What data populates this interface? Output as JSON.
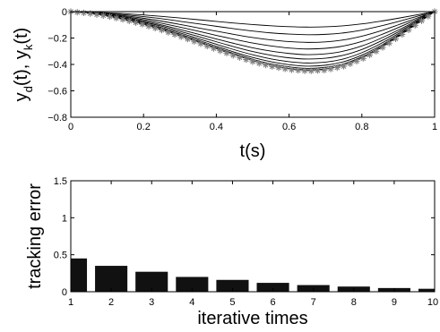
{
  "chart_data": [
    {
      "type": "line",
      "xlabel": "t(s)",
      "ylabel": "y_d(t), y_k(t)",
      "xlim": [
        0,
        1
      ],
      "ylim": [
        -0.8,
        0
      ],
      "xticks": [
        "0",
        "0.2",
        "0.4",
        "0.6",
        "0.8",
        "1"
      ],
      "xtick_values": [
        0,
        0.2,
        0.4,
        0.6,
        0.8,
        1
      ],
      "yticks": [
        "0",
        "−0.2",
        "−0.4",
        "−0.6",
        "−0.8"
      ],
      "ytick_values": [
        0,
        -0.2,
        -0.4,
        -0.6,
        -0.8
      ],
      "grid": false,
      "reference_marker": "*",
      "reference_color": "#808080",
      "line_color": "#000000",
      "x": [
        0,
        0.05,
        0.1,
        0.15,
        0.2,
        0.25,
        0.3,
        0.35,
        0.4,
        0.45,
        0.5,
        0.55,
        0.6,
        0.65,
        0.7,
        0.75,
        0.8,
        0.85,
        0.9,
        0.95,
        1
      ],
      "series": [
        {
          "values": [
            0,
            -0.004,
            -0.009,
            -0.016,
            -0.025,
            -0.036,
            -0.048,
            -0.061,
            -0.074,
            -0.087,
            -0.098,
            -0.107,
            -0.114,
            -0.117,
            -0.115,
            -0.107,
            -0.093,
            -0.073,
            -0.05,
            -0.025,
            0
          ]
        },
        {
          "values": [
            0,
            -0.005,
            -0.013,
            -0.024,
            -0.038,
            -0.054,
            -0.073,
            -0.092,
            -0.111,
            -0.13,
            -0.147,
            -0.161,
            -0.17,
            -0.175,
            -0.172,
            -0.161,
            -0.14,
            -0.11,
            -0.075,
            -0.037,
            0
          ]
        },
        {
          "values": [
            0,
            -0.007,
            -0.018,
            -0.032,
            -0.05,
            -0.072,
            -0.097,
            -0.123,
            -0.148,
            -0.173,
            -0.196,
            -0.214,
            -0.227,
            -0.233,
            -0.229,
            -0.214,
            -0.186,
            -0.147,
            -0.1,
            -0.05,
            0
          ]
        },
        {
          "values": [
            0,
            -0.008,
            -0.021,
            -0.039,
            -0.061,
            -0.088,
            -0.117,
            -0.148,
            -0.18,
            -0.21,
            -0.238,
            -0.26,
            -0.276,
            -0.283,
            -0.278,
            -0.26,
            -0.226,
            -0.178,
            -0.121,
            -0.06,
            0
          ]
        },
        {
          "values": [
            0,
            -0.009,
            -0.024,
            -0.045,
            -0.071,
            -0.101,
            -0.135,
            -0.171,
            -0.207,
            -0.242,
            -0.274,
            -0.299,
            -0.317,
            -0.326,
            -0.32,
            -0.299,
            -0.26,
            -0.205,
            -0.14,
            -0.07,
            0
          ]
        },
        {
          "values": [
            0,
            -0.011,
            -0.027,
            -0.05,
            -0.078,
            -0.111,
            -0.149,
            -0.188,
            -0.228,
            -0.267,
            -0.302,
            -0.33,
            -0.35,
            -0.359,
            -0.353,
            -0.33,
            -0.287,
            -0.226,
            -0.154,
            -0.077,
            0
          ]
        },
        {
          "values": [
            0,
            -0.011,
            -0.029,
            -0.054,
            -0.085,
            -0.121,
            -0.161,
            -0.204,
            -0.247,
            -0.289,
            -0.327,
            -0.358,
            -0.379,
            -0.389,
            -0.383,
            -0.358,
            -0.311,
            -0.245,
            -0.167,
            -0.084,
            0
          ]
        },
        {
          "values": [
            0,
            -0.012,
            -0.031,
            -0.057,
            -0.09,
            -0.128,
            -0.171,
            -0.216,
            -0.262,
            -0.307,
            -0.347,
            -0.379,
            -0.402,
            -0.413,
            -0.406,
            -0.379,
            -0.329,
            -0.26,
            -0.177,
            -0.089,
            0
          ]
        },
        {
          "values": [
            0,
            -0.013,
            -0.032,
            -0.059,
            -0.094,
            -0.134,
            -0.178,
            -0.225,
            -0.273,
            -0.319,
            -0.361,
            -0.395,
            -0.418,
            -0.43,
            -0.422,
            -0.395,
            -0.343,
            -0.27,
            -0.184,
            -0.092,
            0
          ]
        },
        {
          "values": [
            0,
            -0.013,
            -0.033,
            -0.061,
            -0.096,
            -0.137,
            -0.183,
            -0.231,
            -0.281,
            -0.328,
            -0.371,
            -0.406,
            -0.43,
            -0.441,
            -0.434,
            -0.406,
            -0.352,
            -0.278,
            -0.189,
            -0.095,
            0
          ]
        },
        {
          "marker": "*",
          "values": [
            0,
            -0.013,
            -0.034,
            -0.063,
            -0.098,
            -0.14,
            -0.187,
            -0.236,
            -0.286,
            -0.335,
            -0.379,
            -0.414,
            -0.439,
            -0.45,
            -0.443,
            -0.414,
            -0.36,
            -0.284,
            -0.193,
            -0.097,
            0
          ]
        }
      ]
    },
    {
      "type": "bar",
      "xlabel": "iterative times",
      "ylabel": "tracking error",
      "categories": [
        "1",
        "2",
        "3",
        "4",
        "5",
        "6",
        "7",
        "8",
        "9",
        "10"
      ],
      "values": [
        0.45,
        0.35,
        0.27,
        0.2,
        0.16,
        0.12,
        0.09,
        0.07,
        0.05,
        0.04
      ],
      "ylim": [
        0,
        1.5
      ],
      "yticks": [
        "0",
        "0.5",
        "1",
        "1.5"
      ],
      "ytick_values": [
        0,
        0.5,
        1,
        1.5
      ],
      "xticks": [
        "1",
        "2",
        "3",
        "4",
        "5",
        "6",
        "7",
        "8",
        "9",
        "10"
      ],
      "grid": false,
      "bar_color": "#111111"
    }
  ]
}
